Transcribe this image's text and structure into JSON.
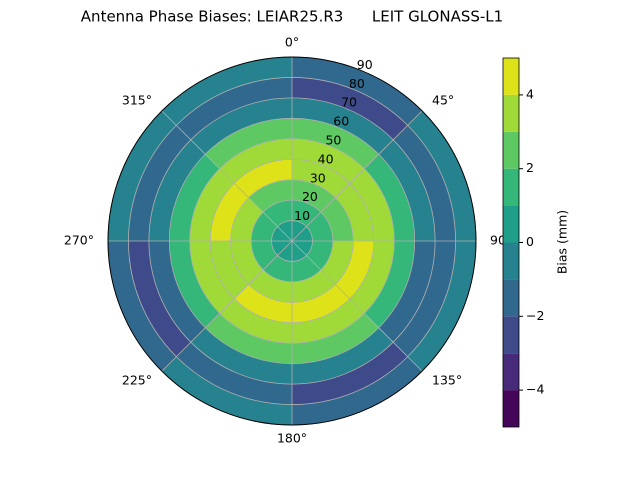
{
  "chart_data": {
    "type": "polar-contour",
    "title": "Antenna Phase Biases: LEIAR25.R3      LEIT GLONASS-L1",
    "colorbar_label": "Bias (mm)",
    "rlim": [
      0,
      90
    ],
    "rticks": [
      10,
      20,
      30,
      40,
      50,
      60,
      70,
      80,
      90
    ],
    "thetaticks": [
      {
        "value": 0,
        "label": "0°"
      },
      {
        "value": 45,
        "label": "45°"
      },
      90,
      {
        "value": 135,
        "label": "135°"
      },
      {
        "value": 180,
        "label": "180°"
      },
      {
        "value": 225,
        "label": "225°"
      },
      {
        "value": 270,
        "label": "270°"
      },
      {
        "value": 315,
        "label": "315°"
      }
    ],
    "zenith_bins": [
      0,
      10,
      20,
      30,
      40,
      50,
      60,
      70,
      80,
      90
    ],
    "azimuth_bins": [
      0,
      45,
      90,
      135,
      180,
      225,
      270,
      315,
      360
    ],
    "values": [
      [
        0.5,
        0.5,
        0.5,
        0.5,
        0.5,
        0.5,
        0.5,
        0.5
      ],
      [
        1.5,
        1.5,
        1.5,
        1.5,
        1.5,
        1.5,
        1.5,
        1.5
      ],
      [
        2.5,
        2.5,
        3.5,
        3.5,
        3.5,
        3.5,
        3.5,
        2.5
      ],
      [
        3.5,
        3.5,
        4.5,
        4.5,
        4.5,
        3.5,
        4.5,
        4.5
      ],
      [
        3.5,
        3.5,
        3.5,
        3.5,
        3.5,
        3.5,
        3.5,
        3.5
      ],
      [
        2.5,
        1.5,
        1.5,
        2.5,
        2.5,
        1.5,
        1.5,
        2.5
      ],
      [
        -0.5,
        -0.5,
        -1.5,
        -0.5,
        -0.5,
        -1.5,
        -0.5,
        -0.5
      ],
      [
        -2.5,
        -1.5,
        -1.5,
        -2.5,
        -1.5,
        -2.5,
        -1.5,
        -1.5
      ],
      [
        -1.5,
        -0.5,
        -0.5,
        -1.5,
        -0.5,
        -1.5,
        -0.5,
        -0.5
      ]
    ],
    "levels": [
      -5,
      -4,
      -3,
      -2,
      -1,
      0,
      1,
      2,
      3,
      4,
      5
    ],
    "colors": [
      "#45065a",
      "#472a7a",
      "#3e4a89",
      "#31688e",
      "#26828e",
      "#1f9e89",
      "#35b779",
      "#5ec962",
      "#a0da39",
      "#dde318"
    ],
    "cticks": [
      {
        "value": -4,
        "label": "−4"
      },
      {
        "value": -2,
        "label": "−2"
      },
      0,
      2,
      4
    ],
    "grid": true
  }
}
